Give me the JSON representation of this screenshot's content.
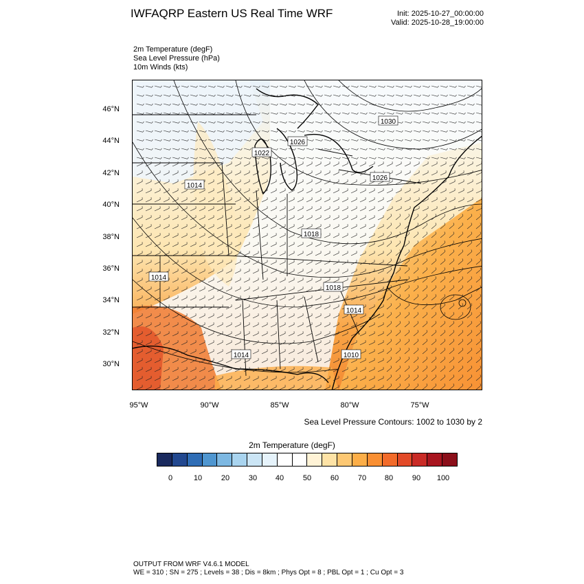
{
  "header": {
    "title": "IWFAQRP Eastern US Real Time WRF",
    "init": "Init: 2025-10-27_00:00:00",
    "valid": "Valid: 2025-10-28_19:00:00"
  },
  "fields": [
    "2m Temperature   (degF)",
    "Sea Level Pressure   (hPa)",
    "10m Winds   (kts)"
  ],
  "map": {
    "lat_ticks": [
      "46°N",
      "44°N",
      "42°N",
      "40°N",
      "38°N",
      "36°N",
      "34°N",
      "32°N",
      "30°N"
    ],
    "lon_ticks": [
      "95°W",
      "90°W",
      "85°W",
      "80°W",
      "75°W"
    ],
    "pressure_labels": [
      "1030",
      "1026",
      "1022",
      "1026",
      "1014",
      "1018",
      "1014",
      "1018",
      "1014",
      "1014",
      "1010"
    ],
    "contour_note": "Sea Level Pressure Contours: 1002 to 1030 by 2"
  },
  "colorbar": {
    "title": "2m Temperature  (degF)",
    "ticks": [
      "0",
      "10",
      "20",
      "30",
      "40",
      "50",
      "60",
      "70",
      "80",
      "90",
      "100"
    ],
    "colors": [
      "#1a2a5e",
      "#22488f",
      "#2f6db5",
      "#4f96d0",
      "#7db8e2",
      "#a9d4ef",
      "#cbe5f5",
      "#e6f3fb",
      "#ffffff",
      "#ffffff",
      "#fff3d6",
      "#fee3a6",
      "#fdc873",
      "#fcae48",
      "#f98f33",
      "#f26b2a",
      "#e24a28",
      "#c92b26",
      "#a8151f",
      "#8b0f1a"
    ]
  },
  "footer": {
    "line1": "OUTPUT FROM WRF V4.6.1 MODEL",
    "line2": "WE = 310 ; SN = 275 ; Levels = 38 ; Dis = 8km ; Phys Opt = 8 ; PBL Opt = 1 ; Cu Opt = 3"
  }
}
